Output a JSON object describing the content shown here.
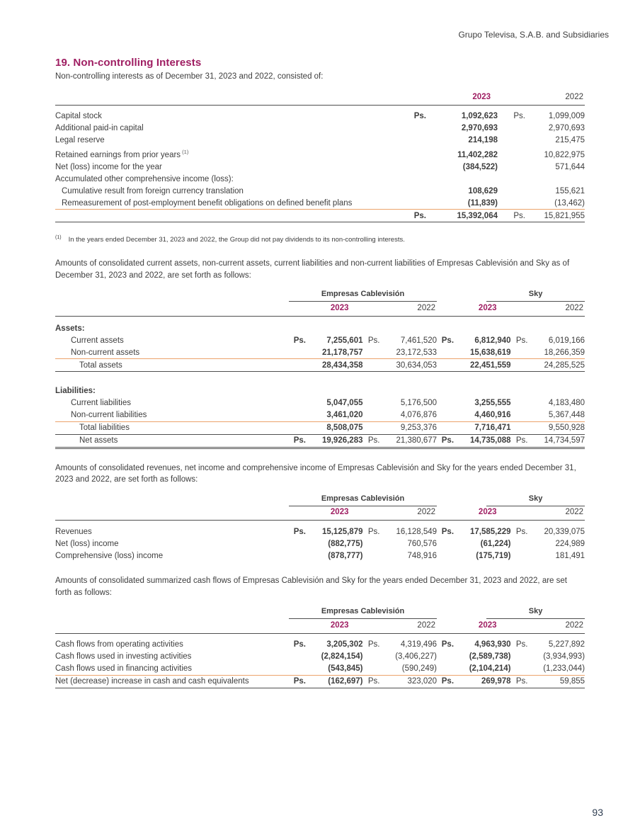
{
  "page": {
    "company_header": "Grupo Televisa, S.A.B. and Subsidiaries",
    "page_number": "93"
  },
  "colors": {
    "accent_magenta": "#9f1e62",
    "rule_orange": "#eca36b",
    "rule_dark": "#4f4f4f",
    "body_text": "#3d3d3d",
    "page_number_blue": "#2f3e52"
  },
  "section": {
    "title": "19. Non-controlling Interests",
    "intro": "Non-controlling interests as of December 31, 2023 and 2022, consisted of:"
  },
  "t1": {
    "years": [
      "2023",
      "2022"
    ],
    "rows": [
      {
        "label": "Capital stock",
        "ps": [
          "Ps.",
          "Ps."
        ],
        "v": [
          "1,092,623",
          "1,099,009"
        ]
      },
      {
        "label": "Additional paid-in capital",
        "v": [
          "2,970,693",
          "2,970,693"
        ]
      },
      {
        "label": "Legal reserve",
        "v": [
          "214,198",
          "215,475"
        ]
      },
      {
        "label": "Retained earnings from prior years",
        "sup": "(1)",
        "v": [
          "11,402,282",
          "10,822,975"
        ]
      },
      {
        "label": "Net (loss) income for the year",
        "v": [
          "(384,522)",
          "571,644"
        ]
      },
      {
        "label": "Accumulated other comprehensive income (loss):",
        "v": [
          "",
          ""
        ]
      },
      {
        "label": "Cumulative result from foreign currency translation",
        "v": [
          "108,629",
          "155,621"
        ]
      },
      {
        "label": "Remeasurement of post-employment benefit obligations on defined benefit plans",
        "v": [
          "(11,839)",
          "(13,462)"
        ]
      }
    ],
    "total": {
      "ps": [
        "Ps.",
        "Ps."
      ],
      "v": [
        "15,392,064",
        "15,821,955"
      ]
    }
  },
  "footnote": {
    "marker": "(1)",
    "text": "In the years ended December 31, 2023 and 2022, the Group did not pay dividends to its non-controlling interests."
  },
  "paras": {
    "assets": "Amounts of consolidated current assets, non-current assets, current liabilities and non-current liabilities of Empresas Cablevisión and Sky as of December 31, 2023 and 2022, are set forth as follows:",
    "revenues": "Amounts of consolidated revenues, net income and comprehensive income of Empresas Cablevisión and Sky for the years ended December 31, 2023 and 2022, are set forth as follows:",
    "cashflows": "Amounts of consolidated summarized cash flows of Empresas Cablevisión and Sky for the years ended December 31, 2023 and 2022, are set forth as follows:"
  },
  "groups": {
    "ec": "Empresas Cablevisión",
    "sky": "Sky",
    "years": [
      "2023",
      "2022",
      "2023",
      "2022"
    ]
  },
  "t2": {
    "assets_heading": "Assets:",
    "liabilities_heading": "Liabilities:",
    "rows_assets": [
      {
        "label": "Current assets",
        "ps": [
          "Ps.",
          "Ps.",
          "Ps.",
          "Ps."
        ],
        "v": [
          "7,255,601",
          "7,461,520",
          "6,812,940",
          "6,019,166"
        ]
      },
      {
        "label": "Non-current assets",
        "v": [
          "21,178,757",
          "23,172,533",
          "15,638,619",
          "18,266,359"
        ]
      },
      {
        "label": "Total assets",
        "v": [
          "28,434,358",
          "30,634,053",
          "22,451,559",
          "24,285,525"
        ]
      }
    ],
    "rows_liabilities": [
      {
        "label": "Current liabilities",
        "v": [
          "5,047,055",
          "5,176,500",
          "3,255,555",
          "4,183,480"
        ]
      },
      {
        "label": "Non-current liabilities",
        "v": [
          "3,461,020",
          "4,076,876",
          "4,460,916",
          "5,367,448"
        ]
      },
      {
        "label": "Total liabilities",
        "v": [
          "8,508,075",
          "9,253,376",
          "7,716,471",
          "9,550,928"
        ]
      },
      {
        "label": "Net assets",
        "ps": [
          "Ps.",
          "Ps.",
          "Ps.",
          "Ps."
        ],
        "v": [
          "19,926,283",
          "21,380,677",
          "14,735,088",
          "14,734,597"
        ]
      }
    ]
  },
  "t3": {
    "rows": [
      {
        "label": "Revenues",
        "ps": [
          "Ps.",
          "Ps.",
          "Ps.",
          "Ps."
        ],
        "v": [
          "15,125,879",
          "16,128,549",
          "17,585,229",
          "20,339,075"
        ]
      },
      {
        "label": "Net (loss) income",
        "v": [
          "(882,775)",
          "760,576",
          "(61,224)",
          "224,989"
        ]
      },
      {
        "label": "Comprehensive (loss) income",
        "v": [
          "(878,777)",
          "748,916",
          "(175,719)",
          "181,491"
        ]
      }
    ]
  },
  "t4": {
    "rows": [
      {
        "label": "Cash flows from operating activities",
        "ps": [
          "Ps.",
          "Ps.",
          "Ps.",
          "Ps."
        ],
        "v": [
          "3,205,302",
          "4,319,496",
          "4,963,930",
          "5,227,892"
        ]
      },
      {
        "label": "Cash flows used in investing activities",
        "v": [
          "(2,824,154)",
          "(3,406,227)",
          "(2,589,738)",
          "(3,934,993)"
        ]
      },
      {
        "label": "Cash flows used in financing activities",
        "v": [
          "(543,845)",
          "(590,249)",
          "(2,104,214)",
          "(1,233,044)"
        ]
      },
      {
        "label": "Net (decrease) increase in cash and cash equivalents",
        "ps": [
          "Ps.",
          "Ps.",
          "Ps.",
          "Ps."
        ],
        "v": [
          "(162,697)",
          "323,020",
          "269,978",
          "59,855"
        ]
      }
    ]
  }
}
